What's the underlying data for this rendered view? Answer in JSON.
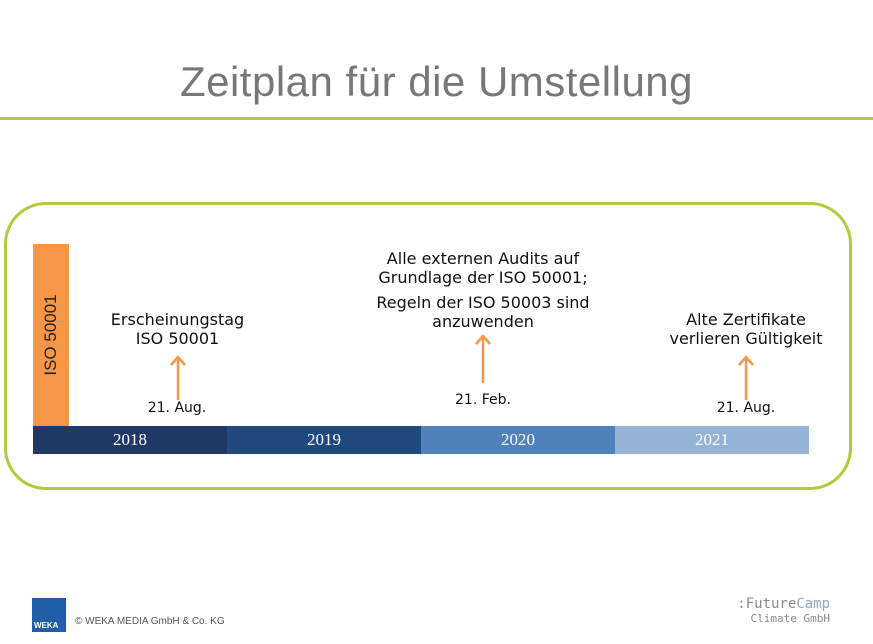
{
  "title": "Zeitplan für die Umstellung",
  "iso_label": "ISO 50001",
  "years": [
    "2018",
    "2019",
    "2020",
    "2021"
  ],
  "year_colors": [
    "#1f3864",
    "#1f497d",
    "#4f81bd",
    "#95b3d7"
  ],
  "events": [
    {
      "lines": [
        "Erscheinungstag ISO 50001"
      ],
      "date": "21. Aug."
    },
    {
      "lines": [
        "Alle externen Audits auf Grundlage der ISO 50001;",
        "Regeln der ISO 50003 sind anzuwenden"
      ],
      "date": "21. Feb."
    },
    {
      "lines": [
        "Alte Zertifikate verlieren Gültigkeit"
      ],
      "date": "21. Aug."
    }
  ],
  "colors": {
    "accent_green": "#b5c93a",
    "iso_orange": "#f79646",
    "arrow": "#f79646"
  },
  "footer": {
    "weka_logo_text": "WEKA",
    "copyright": "© WEKA MEDIA GmbH & Co. KG",
    "futurecamp_prefix": ":Future",
    "futurecamp_accent": "Camp",
    "futurecamp_sub": "Climate GmbH"
  }
}
